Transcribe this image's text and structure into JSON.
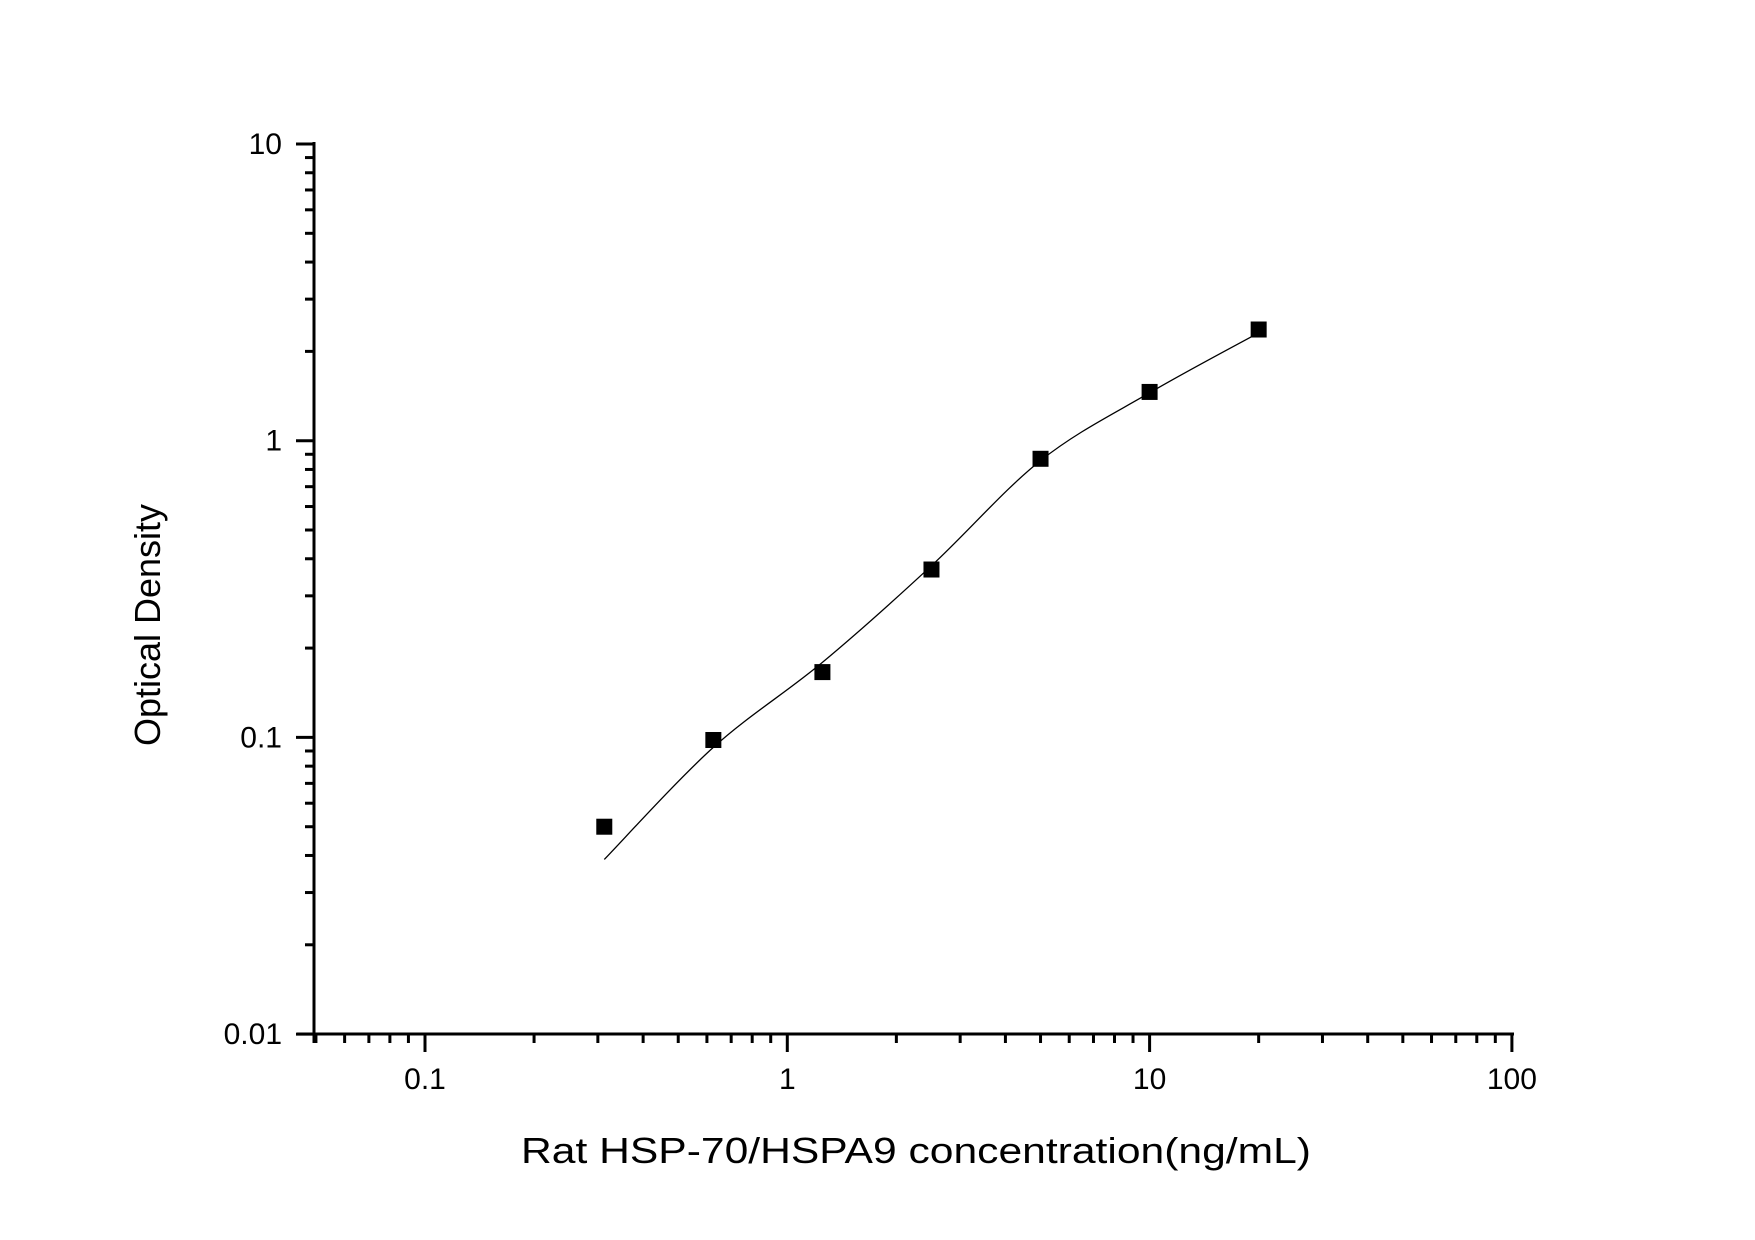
{
  "chart_data": {
    "type": "scatter",
    "title": "",
    "xlabel": "Rat HSP-70/HSPA9 concentration(ng/mL)",
    "ylabel": "Optical Density",
    "xscale": "log",
    "yscale": "log",
    "xlim": [
      0.05,
      100
    ],
    "ylim": [
      0.01,
      10
    ],
    "x_ticks": [
      0.1,
      1,
      10,
      100
    ],
    "x_tick_labels": [
      "0.1",
      "1",
      "10",
      "100"
    ],
    "y_ticks": [
      0.01,
      0.1,
      1,
      10
    ],
    "y_tick_labels": [
      "0.01",
      "0.1",
      "1",
      "10"
    ],
    "grid": false,
    "legend": null,
    "series": [
      {
        "name": "Standard points",
        "marker": "square",
        "color": "#000000",
        "x": [
          0.3125,
          0.625,
          1.25,
          2.5,
          5,
          10,
          20
        ],
        "y": [
          0.05,
          0.098,
          0.166,
          0.368,
          0.869,
          1.46,
          2.37
        ]
      },
      {
        "name": "Fitted curve",
        "style": "line",
        "color": "#000000",
        "x": [
          0.3125,
          0.625,
          1.25,
          2.5,
          5,
          10,
          20
        ],
        "y": [
          0.0388,
          0.0925,
          0.179,
          0.379,
          0.857,
          1.45,
          2.31
        ]
      }
    ]
  }
}
